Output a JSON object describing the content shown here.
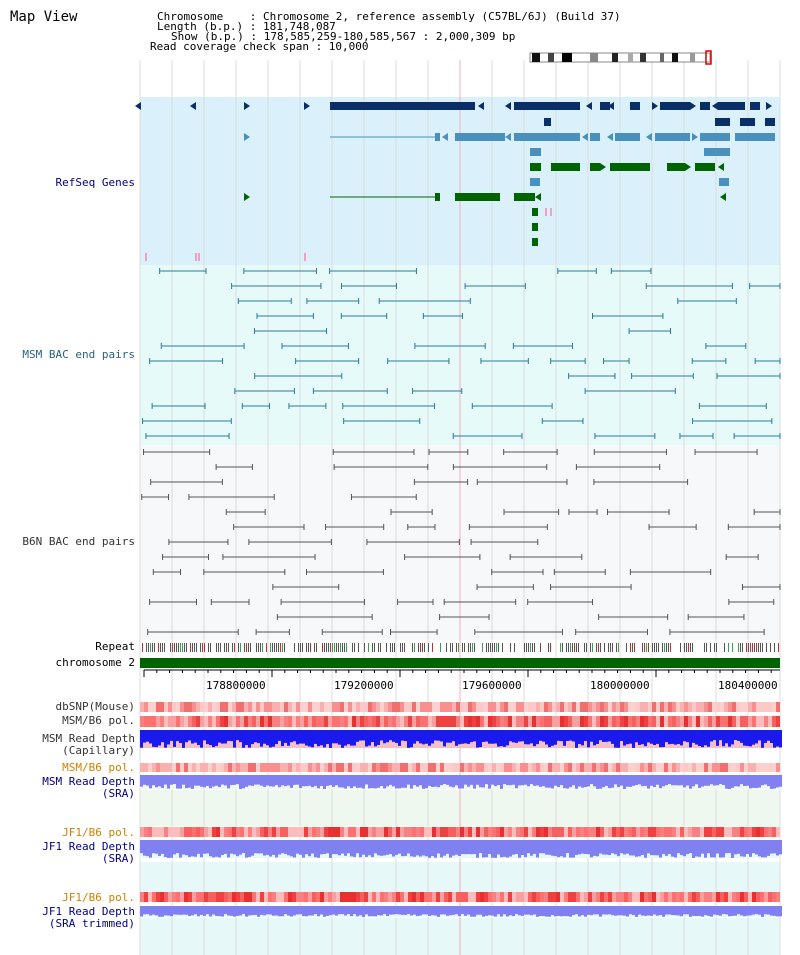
{
  "header": {
    "title": "Map View",
    "chromosome_line": "Chromosome    : Chromosome 2, reference assembly (C57BL/6J) (Build 37)",
    "length_line": "Length (b.p.) : 181,748,087",
    "show_line": "Show (b.p.) : 178,585,259-180,585,567 : 2,000,309 bp",
    "coverage_line": "Read coverage check span : 10,000"
  },
  "tracks": {
    "refseq": "RefSeq Genes",
    "msm_bac": "MSM BAC end pairs",
    "b6n_bac": "B6N BAC end pairs",
    "repeat": "Repeat",
    "chromosome": "chromosome 2"
  },
  "axis": {
    "tick_labels": [
      "178800000",
      "179200000",
      "179600000",
      "180000000",
      "180400000"
    ]
  },
  "lower_tracks": {
    "dbsnp": "dbSNP(Mouse)",
    "msm_b6_pol_1": "MSM/B6 pol.",
    "msm_depth_cap_1": "MSM Read Depth",
    "msm_depth_cap_2": "(Capillary)",
    "msm_b6_pol_2": "MSM/B6 pol.",
    "msm_depth_sra_1": "MSM Read Depth",
    "msm_depth_sra_2": "(SRA)",
    "jf1_b6_pol_1": "JF1/B6 pol.",
    "jf1_depth_sra_1": "JF1 Read Depth",
    "jf1_depth_sra_2": "(SRA)",
    "jf1_b6_pol_2": "JF1/B6 pol.",
    "jf1_depth_trim_1": "JF1 Read Depth",
    "jf1_depth_trim_2": "(SRA trimmed)"
  },
  "colors": {
    "refseq_bg": "#daf0fa",
    "msm_bg": "#e6fafa",
    "b6n_bg": "#f6f8fa",
    "gene_dark": "#0a2e66",
    "gene_mid": "#4a90bd",
    "gene_green": "#006400",
    "msm_line": "#2a7c99",
    "b6n_line": "#555555",
    "label_blue": "#000080",
    "label_teal": "#2a6080",
    "label_orange": "#d08000",
    "label_gray": "#333333",
    "depth_blue": "#1a1aee",
    "depth_light": "#8080f0"
  }
}
